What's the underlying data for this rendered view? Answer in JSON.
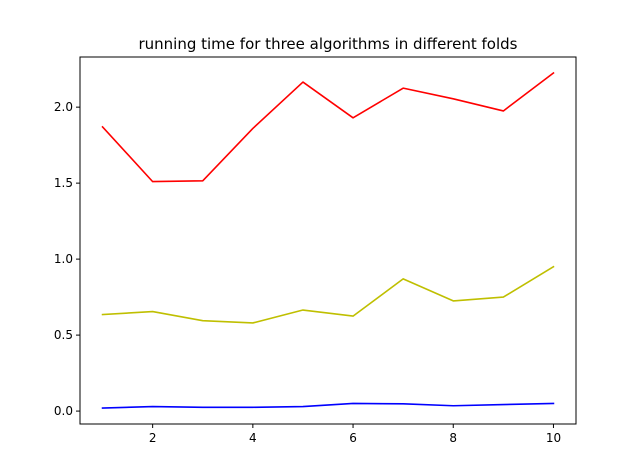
{
  "chart_data": {
    "type": "line",
    "title": "running time for three algorithms in different folds",
    "xlabel": "",
    "ylabel": "",
    "x": [
      1,
      2,
      3,
      4,
      5,
      6,
      7,
      8,
      9,
      10
    ],
    "xlim": [
      0.55,
      10.45
    ],
    "ylim": [
      -0.085,
      2.33
    ],
    "xticks": [
      2,
      4,
      6,
      8,
      10
    ],
    "xtick_labels": [
      "2",
      "4",
      "6",
      "8",
      "10"
    ],
    "yticks": [
      0.0,
      0.5,
      1.0,
      1.5,
      2.0
    ],
    "ytick_labels": [
      "0.0",
      "0.5",
      "1.0",
      "1.5",
      "2.0"
    ],
    "grid": false,
    "legend": "none",
    "series": [
      {
        "color": "#ff0000",
        "values": [
          1.87,
          1.51,
          1.515,
          1.86,
          2.165,
          1.93,
          2.125,
          2.055,
          1.975,
          2.225
        ]
      },
      {
        "color": "#bfbf00",
        "values": [
          0.635,
          0.655,
          0.595,
          0.58,
          0.665,
          0.625,
          0.87,
          0.725,
          0.75,
          0.95
        ]
      },
      {
        "color": "#0000ff",
        "values": [
          0.02,
          0.03,
          0.025,
          0.025,
          0.03,
          0.05,
          0.048,
          0.035,
          0.043,
          0.05
        ]
      }
    ]
  }
}
